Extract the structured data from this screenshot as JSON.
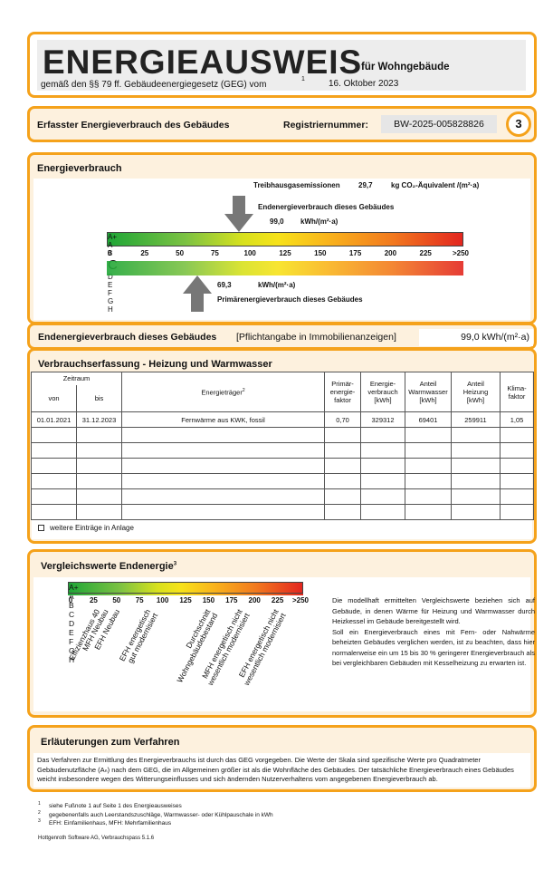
{
  "header": {
    "title": "ENERGIEAUSWEIS",
    "subtitle": "für Wohngebäude",
    "law": "gemäß den §§ 79 ff. Gebäudeenergiegesetz (GEG) vom",
    "footnote_ref": "1",
    "date": "16. Oktober 2023"
  },
  "summary": {
    "label": "Erfasster Energieverbrauch des Gebäudes",
    "reg_label": "Registriernummer:",
    "reg_number": "BW-2025-005828826",
    "page": "3"
  },
  "consumption": {
    "title": "Energieverbrauch",
    "ghg_label": "Treibhausgasemissionen",
    "ghg_value": "29,7",
    "ghg_unit": "kg CO₂-Äquivalent /(m²·a)",
    "final_label": "Endenergieverbrauch dieses Gebäudes",
    "final_value": "99,0",
    "final_unit": "kWh/(m²·a)",
    "classes": [
      "A+",
      "A",
      "B",
      "C",
      "D",
      "E",
      "F",
      "G",
      "H"
    ],
    "ticks": [
      "0",
      "25",
      "50",
      "75",
      "100",
      "125",
      "150",
      "175",
      "200",
      "225",
      ">250"
    ],
    "primary_value": "69,3",
    "primary_unit": "kWh/(m²·a)",
    "primary_label": "Primärenergieverbrauch dieses Gebäudes"
  },
  "mandatory": {
    "label": "Endenergieverbrauch dieses Gebäudes",
    "note": "[Pflichtangabe in Immobilienanzeigen]",
    "value": "99,0 kWh/(m²·a)"
  },
  "recording": {
    "title": "Verbrauchserfassung - Heizung und Warmwasser",
    "headers": {
      "period": "Zeitraum",
      "from": "von",
      "to": "bis",
      "carrier": "Energieträger",
      "carrier_ref": "2",
      "primary_factor": "Primär-\nenergie-\nfaktor",
      "energy": "Energie-\nverbrauch\n[kWh]",
      "water": "Anteil\nWarmwasser\n[kWh]",
      "heating": "Anteil\nHeizung\n[kWh]",
      "climate": "Klima-\nfaktor"
    },
    "rows": [
      [
        "01.01.2021",
        "31.12.2023",
        "Fernwärme aus KWK, fossil",
        "0,70",
        "329312",
        "69401",
        "259911",
        "1,05"
      ]
    ],
    "more": "weitere Einträge in Anlage"
  },
  "comparison": {
    "title": "Vergleichswerte Endenergie",
    "title_ref": "3",
    "classes": [
      "A+",
      "A",
      "B",
      "C",
      "D",
      "E",
      "F",
      "G",
      "H"
    ],
    "ticks": [
      "0",
      "25",
      "50",
      "75",
      "100",
      "125",
      "150",
      "175",
      "200",
      "225",
      ">250"
    ],
    "benchmarks": [
      "Effizienzhaus 40",
      "MFH Neubau",
      "EFH Neubau",
      "EFH energetisch\ngut modernisiert",
      "Durchschnitt\nWohngebäudebestand",
      "MFH energetisch nicht\nwesentlich modernisiert",
      "EFH energetisch nicht\nwesentlich modernisiert"
    ],
    "text": [
      "Die modellhaft ermittelten Vergleichswerte beziehen sich auf Gebäude, in denen Wärme für Heizung und Warmwasser durch Heizkessel im Gebäude bereitgestellt wird.",
      "Soll ein Energieverbrauch eines mit Fern- oder Nahwärme beheizten Gebäudes verglichen werden, ist zu beachten, dass hier normalerweise ein um 15 bis 30 % geringerer Energieverbrauch als bei vergleichbaren Gebäuden mit Kesselheizung zu erwarten ist."
    ]
  },
  "explanation": {
    "title": "Erläuterungen zum Verfahren",
    "text": "Das Verfahren zur Ermittlung des Energieverbrauchs ist durch das GEG vorgegeben. Die Werte der Skala sind spezifische Werte pro Quadratmeter Gebäudenutzfläche (Aₙ) nach dem GEG, die im Allgemeinen größer ist als die Wohnfläche des Gebäudes. Der tatsächliche Energieverbrauch eines Gebäudes weicht insbesondere wegen des Witterungseinflusses und sich ändernden Nutzerverhaltens vom angegebenen Energieverbrauch ab."
  },
  "footnotes": [
    {
      "ref": "1",
      "text": "siehe Fußnote 1 auf Seite 1 des Energieausweises"
    },
    {
      "ref": "2",
      "text": "gegebenenfalls auch Leerstandszuschläge, Warmwasser- oder Kühlpauschale in kWh"
    },
    {
      "ref": "3",
      "text": "EFH: Einfamilienhaus, MFH: Mehrfamilienhaus"
    }
  ],
  "software": "Hottgenroth Software AG, Verbrauchspass 5.1.6"
}
